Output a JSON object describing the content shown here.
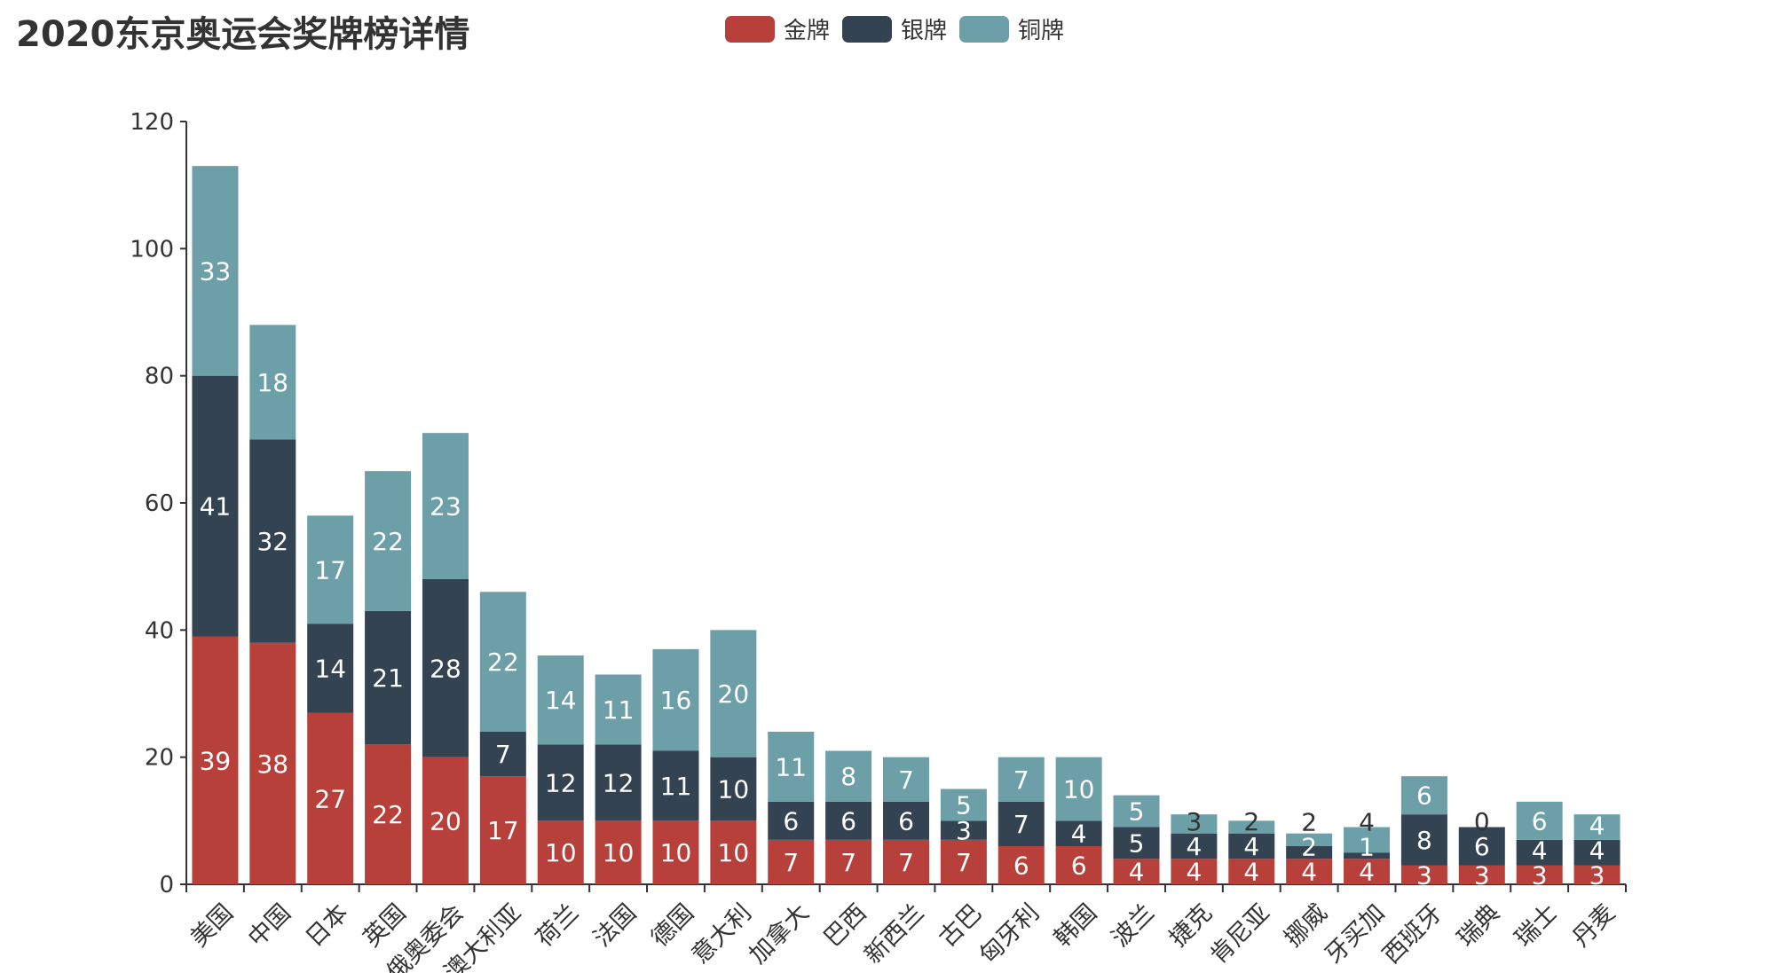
{
  "chart_data": {
    "type": "bar",
    "stacked": true,
    "title": "2020东京奥运会奖牌榜详情",
    "categories": [
      "美国",
      "中国",
      "日本",
      "英国",
      "俄奥委会",
      "澳大利亚",
      "荷兰",
      "法国",
      "德国",
      "意大利",
      "加拿大",
      "巴西",
      "新西兰",
      "古巴",
      "匈牙利",
      "韩国",
      "波兰",
      "捷克",
      "肯尼亚",
      "挪威",
      "牙买加",
      "西班牙",
      "瑞典",
      "瑞士",
      "丹麦"
    ],
    "series": [
      {
        "name": "金牌",
        "color": "#b7403a",
        "values": [
          39,
          38,
          27,
          22,
          20,
          17,
          10,
          10,
          10,
          10,
          7,
          7,
          7,
          7,
          6,
          6,
          4,
          4,
          4,
          4,
          4,
          3,
          3,
          3,
          3
        ]
      },
      {
        "name": "银牌",
        "color": "#334352",
        "values": [
          41,
          32,
          14,
          21,
          28,
          7,
          12,
          12,
          11,
          10,
          6,
          6,
          6,
          3,
          7,
          4,
          5,
          4,
          4,
          2,
          1,
          8,
          6,
          4,
          4
        ]
      },
      {
        "name": "铜牌",
        "color": "#6d9fa8",
        "values": [
          33,
          18,
          17,
          22,
          23,
          22,
          14,
          11,
          16,
          20,
          11,
          8,
          7,
          5,
          7,
          10,
          5,
          3,
          2,
          2,
          4,
          6,
          0,
          6,
          4
        ]
      }
    ],
    "yticks": [
      0,
      20,
      40,
      60,
      80,
      100,
      120
    ],
    "ylim": [
      0,
      120
    ],
    "xlabel": "",
    "ylabel": "",
    "grid": false,
    "legend_position": "top-center",
    "data_labels": "inside"
  }
}
